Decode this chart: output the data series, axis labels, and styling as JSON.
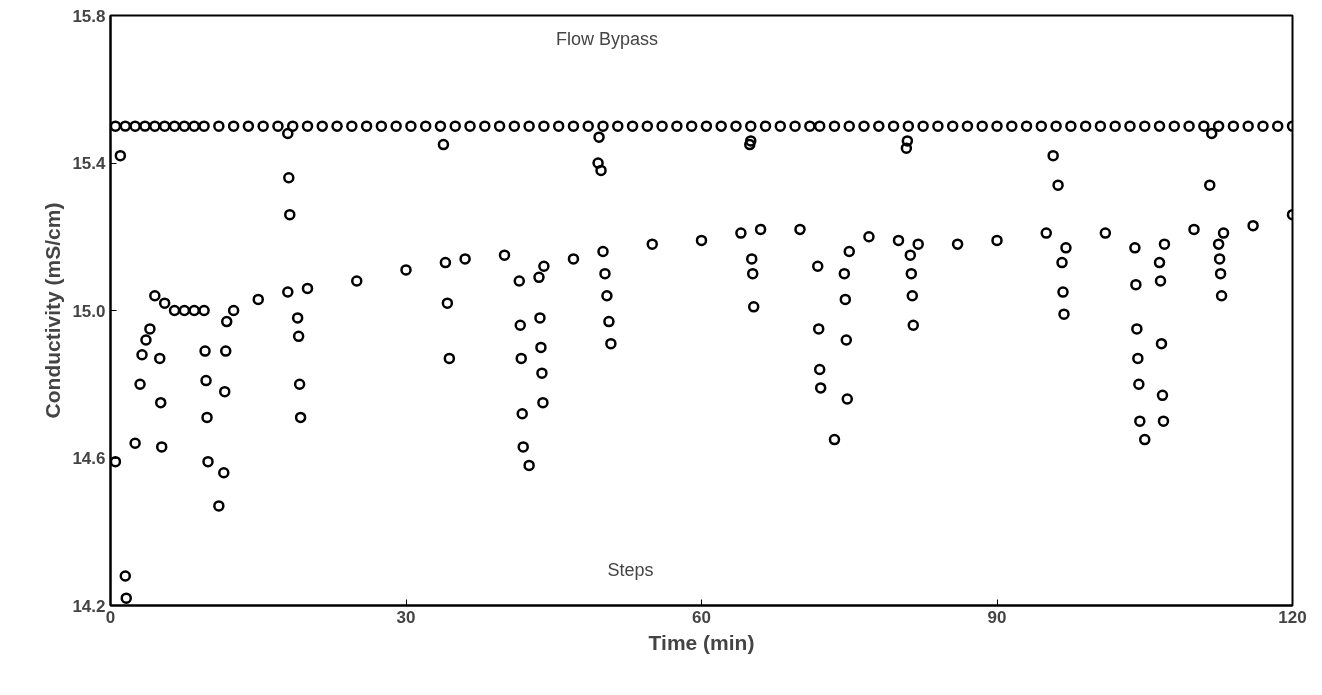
{
  "chart_data": {
    "type": "scatter",
    "xlabel": "Time (min)",
    "ylabel": "Conductivity (mS/cm)",
    "xlim": [
      0,
      120
    ],
    "ylim": [
      14.2,
      15.8
    ],
    "xticks": [
      0,
      30,
      60,
      90,
      120
    ],
    "yticks": [
      14.2,
      14.6,
      {
        "value": 15,
        "label": "15.0"
      },
      15.4,
      15.8
    ],
    "grid": false,
    "marker": "circle",
    "annotations": [
      "Flow Bypass",
      "Steps"
    ],
    "series": [
      {
        "color": "#000000",
        "x": [
          0.5,
          1.5,
          2.5,
          3.5,
          4.5,
          5.5,
          6.5,
          7.5,
          8.5,
          9.5,
          11,
          12.5,
          14,
          15.5,
          17,
          18.5,
          20,
          21.5,
          23,
          24.5,
          26,
          27.5,
          29,
          30.5,
          32,
          33.5,
          35,
          36.5,
          38,
          39.5,
          41,
          42.5,
          44,
          45.5,
          47,
          48.5,
          50,
          51.5,
          53,
          54.5,
          56,
          57.5,
          59,
          60.5,
          62,
          63.5,
          65,
          66.5,
          68,
          69.5,
          71,
          72,
          73.5,
          75,
          76.5,
          78,
          79.5,
          81,
          82.5,
          84,
          85.5,
          87,
          88.5,
          90,
          91.5,
          93,
          94.5,
          96,
          97.5,
          99,
          100.5,
          102,
          103.5,
          105,
          106.5,
          108,
          109.5,
          111,
          112.5,
          114,
          115.5,
          117,
          118.5,
          120
        ],
        "values": [
          15.5,
          15.5,
          15.5,
          15.5,
          15.5,
          15.5,
          15.5,
          15.5,
          15.5,
          15.5,
          15.5,
          15.5,
          15.5,
          15.5,
          15.5,
          15.5,
          15.5,
          15.5,
          15.5,
          15.5,
          15.5,
          15.5,
          15.5,
          15.5,
          15.5,
          15.5,
          15.5,
          15.5,
          15.5,
          15.5,
          15.5,
          15.5,
          15.5,
          15.5,
          15.5,
          15.5,
          15.5,
          15.5,
          15.5,
          15.5,
          15.5,
          15.5,
          15.5,
          15.5,
          15.5,
          15.5,
          15.5,
          15.5,
          15.5,
          15.5,
          15.5,
          15.5,
          15.5,
          15.5,
          15.5,
          15.5,
          15.5,
          15.5,
          15.5,
          15.5,
          15.5,
          15.5,
          15.5,
          15.5,
          15.5,
          15.5,
          15.5,
          15.5,
          15.5,
          15.5,
          15.5,
          15.5,
          15.5,
          15.5,
          15.5,
          15.5,
          15.5,
          15.5,
          15.5,
          15.5,
          15.5,
          15.5,
          15.5,
          15.5
        ]
      },
      {
        "color": "#000000",
        "x": [
          1.0,
          18.0,
          18.1,
          18.2,
          33.8,
          49.6,
          49.5,
          49.8,
          64.9,
          65.0,
          80.8,
          80.9,
          95.7,
          96.2,
          111.6,
          111.8
        ],
        "values": [
          15.42,
          15.48,
          15.36,
          15.26,
          15.45,
          15.47,
          15.4,
          15.38,
          15.45,
          15.46,
          15.44,
          15.46,
          15.42,
          15.34,
          15.34,
          15.48
        ]
      },
      {
        "color": "#000000",
        "x": [
          0.5,
          1.5,
          1.6,
          2.5,
          3.0,
          3.2,
          3.6,
          4.0,
          4.5,
          5.0,
          5.1,
          5.2,
          5.5,
          6.5,
          7.5,
          8.5,
          9.5,
          9.6,
          9.7,
          9.8,
          9.9,
          11.0,
          11.5,
          11.6,
          11.7,
          11.8,
          12.5,
          15.0,
          18.0,
          19.0,
          19.1,
          19.2,
          19.3,
          20.0,
          25.0,
          30.0,
          34.0,
          34.2,
          34.4,
          36.0,
          40.0,
          41.5,
          41.6,
          41.7,
          41.8,
          41.9,
          42.5,
          43.5,
          43.6,
          43.7,
          43.8,
          43.9,
          44.0,
          47.0,
          50.0,
          50.2,
          50.4,
          50.6,
          50.8,
          55.0,
          60.0,
          64.0,
          65.1,
          65.2,
          65.3,
          66.0,
          70.0,
          71.8,
          71.9,
          72.0,
          72.1,
          73.5,
          74.5,
          74.6,
          74.7,
          74.8,
          75.0,
          77.0,
          80.0,
          81.2,
          81.3,
          81.4,
          81.5,
          82.0,
          86.0,
          90.0,
          95.0,
          96.6,
          96.7,
          96.8,
          97.0,
          101.0,
          104.0,
          104.1,
          104.2,
          104.3,
          104.4,
          104.5,
          105.0,
          106.5,
          106.6,
          106.7,
          106.8,
          106.9,
          107.0,
          110.0,
          112.5,
          112.6,
          112.7,
          112.8,
          113.0,
          116.0,
          120.0
        ],
        "values": [
          14.59,
          14.28,
          14.22,
          14.64,
          14.8,
          14.88,
          14.92,
          14.95,
          15.04,
          14.87,
          14.75,
          14.63,
          15.02,
          15.0,
          15.0,
          15.0,
          15.0,
          14.89,
          14.81,
          14.71,
          14.59,
          14.47,
          14.56,
          14.78,
          14.89,
          14.97,
          15.0,
          15.03,
          15.05,
          14.98,
          14.93,
          14.8,
          14.71,
          15.06,
          15.08,
          15.11,
          15.13,
          15.02,
          14.87,
          15.14,
          15.15,
          15.08,
          14.96,
          14.87,
          14.72,
          14.63,
          14.58,
          15.09,
          14.98,
          14.9,
          14.83,
          14.75,
          15.12,
          15.14,
          15.16,
          15.1,
          15.04,
          14.97,
          14.91,
          15.18,
          15.19,
          15.21,
          15.14,
          15.1,
          15.01,
          15.22,
          15.22,
          15.12,
          14.95,
          14.84,
          14.79,
          14.65,
          15.1,
          15.03,
          14.92,
          14.76,
          15.16,
          15.2,
          15.19,
          15.15,
          15.1,
          15.04,
          14.96,
          15.18,
          15.18,
          15.19,
          15.21,
          15.13,
          15.05,
          14.99,
          15.17,
          15.21,
          15.17,
          15.07,
          14.95,
          14.87,
          14.8,
          14.7,
          14.65,
          15.13,
          15.08,
          14.91,
          14.77,
          14.7,
          15.18,
          15.22,
          15.18,
          15.14,
          15.1,
          15.04,
          15.21,
          15.23,
          15.26
        ]
      }
    ]
  }
}
